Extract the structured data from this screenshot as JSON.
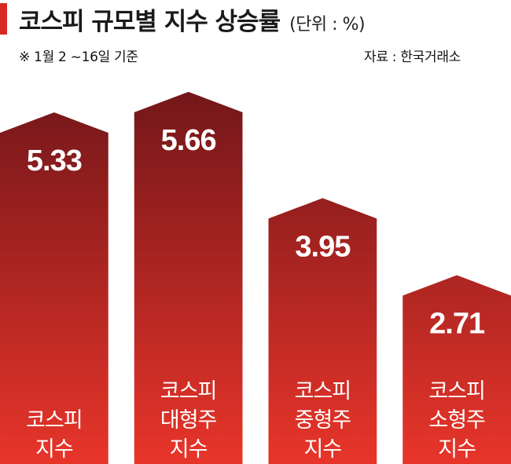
{
  "header": {
    "title": "코스피 규모별 지수 상승률",
    "unit": "(단위 : %)",
    "note": "※ 1월 2 ~16일 기준",
    "source": "자료 : 한국거래소"
  },
  "colors": {
    "accent": "#d62b25",
    "bar_top": "#6e1519",
    "bar_bottom": "#e8352a"
  },
  "chart_data": {
    "type": "bar",
    "title": "코스피 규모별 지수 상승률",
    "ylabel": "",
    "xlabel": "",
    "categories": [
      [
        "코스피",
        "지수"
      ],
      [
        "코스피",
        "대형주",
        "지수"
      ],
      [
        "코스피",
        "중형주",
        "지수"
      ],
      [
        "코스피",
        "소형주",
        "지수"
      ]
    ],
    "values": [
      5.33,
      5.66,
      3.95,
      2.71
    ],
    "value_labels": [
      "5.33",
      "5.66",
      "3.95",
      "2.71"
    ],
    "ylim": [
      0,
      5.66
    ],
    "grid": false,
    "legend": "none"
  }
}
